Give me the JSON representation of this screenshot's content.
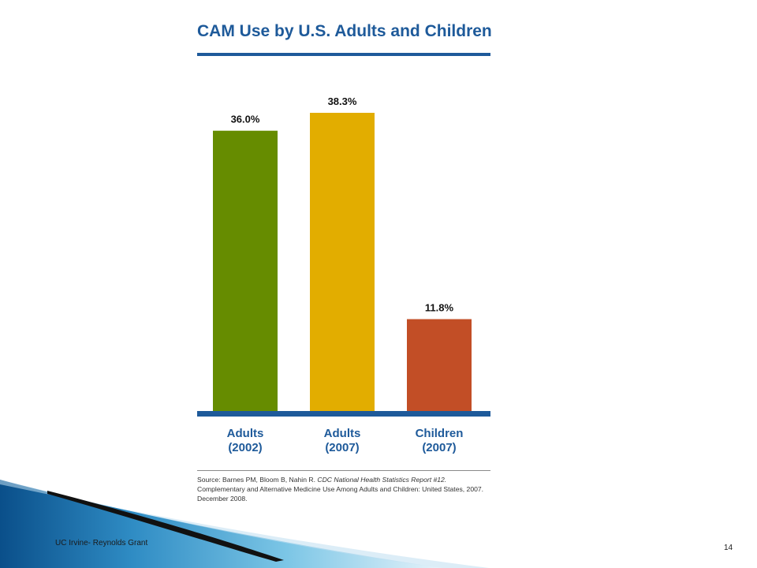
{
  "chart_data": {
    "type": "bar",
    "title": "CAM Use by U.S. Adults and Children",
    "categories": [
      [
        "Adults",
        "(2002)"
      ],
      [
        "Adults",
        "(2007)"
      ],
      [
        "Children",
        "(2007)"
      ]
    ],
    "values": [
      36.0,
      38.3,
      11.8
    ],
    "value_labels": [
      "36.0%",
      "38.3%",
      "11.8%"
    ],
    "bar_colors": [
      "#668c00",
      "#e2ad00",
      "#c24e26"
    ],
    "ylim": [
      0,
      38.3
    ],
    "grid": false,
    "legend": "none",
    "xlabel": "",
    "ylabel": ""
  },
  "source": {
    "prefix": "Source: Barnes PM, Bloom B, Nahin R. ",
    "italic": "CDC National Health Statistics Report #12.",
    "rest": " Complementary and Alternative Medicine Use Among Adults and Children: United States, 2007. December 2008."
  },
  "colors": {
    "accent": "#1e5a9a",
    "swoosh_light": "#5ab4dc",
    "swoosh_dark": "#0a4f8a"
  },
  "footer": {
    "text": "UC Irvine- Reynolds Grant",
    "page_number": "14"
  }
}
